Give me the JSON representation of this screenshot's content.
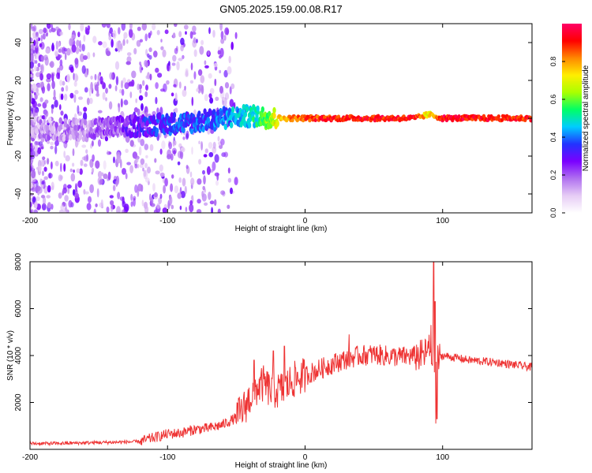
{
  "figure_title": "GN05.2025.159.00.08.R17",
  "chart_data": [
    {
      "type": "heatmap",
      "title": "GN05.2025.159.00.08.R17",
      "xlabel": "Height of straight line (km)",
      "ylabel": "Frequency (Hz)",
      "xlim": [
        -200,
        165
      ],
      "ylim": [
        -50,
        50
      ],
      "x_ticks": [
        -200,
        -100,
        0,
        100
      ],
      "y_ticks": [
        -40,
        -20,
        0,
        20,
        40
      ],
      "grid": false,
      "colorbar": {
        "label": "Normalized spectral amplitude",
        "range": [
          0,
          1
        ],
        "ticks": [
          0.0,
          0.2,
          0.4,
          0.6,
          0.8
        ],
        "colormap": [
          "#ffffff",
          "#e6ccf5",
          "#b070f0",
          "#7a00ff",
          "#2233ff",
          "#00ccff",
          "#00ff66",
          "#aaff00",
          "#ffee00",
          "#ff8800",
          "#ff0000",
          "#ff0066"
        ]
      },
      "ridge": [
        {
          "x": -195,
          "y": -5,
          "amp": 0.12
        },
        {
          "x": -180,
          "y": -6,
          "amp": 0.15
        },
        {
          "x": -160,
          "y": -6,
          "amp": 0.15
        },
        {
          "x": -140,
          "y": -5,
          "amp": 0.2
        },
        {
          "x": -120,
          "y": -4,
          "amp": 0.3
        },
        {
          "x": -100,
          "y": -3,
          "amp": 0.35
        },
        {
          "x": -80,
          "y": -2,
          "amp": 0.35
        },
        {
          "x": -60,
          "y": 0,
          "amp": 0.4
        },
        {
          "x": -45,
          "y": 1,
          "amp": 0.45
        },
        {
          "x": -35,
          "y": 1,
          "amp": 0.5
        },
        {
          "x": -25,
          "y": 0,
          "amp": 0.65
        },
        {
          "x": -15,
          "y": 0,
          "amp": 0.8
        },
        {
          "x": 0,
          "y": 0,
          "amp": 0.88
        },
        {
          "x": 40,
          "y": 0,
          "amp": 0.92
        },
        {
          "x": 80,
          "y": 0,
          "amp": 0.92
        },
        {
          "x": 90,
          "y": 2,
          "amp": 0.7
        },
        {
          "x": 100,
          "y": 0,
          "amp": 0.93
        },
        {
          "x": 165,
          "y": 0,
          "amp": 0.9
        }
      ]
    },
    {
      "type": "line",
      "xlabel": "Height of straight line (km)",
      "ylabel": "SNR (10 * v/v)",
      "xlim": [
        -200,
        165
      ],
      "ylim": [
        0,
        8000
      ],
      "x_ticks": [
        -200,
        -100,
        0,
        100
      ],
      "y_ticks": [
        2000,
        4000,
        6000,
        8000
      ],
      "grid": false,
      "line_color": "#ee3333",
      "series": [
        {
          "x": [
            -200,
            -180,
            -160,
            -140,
            -120,
            -110,
            -100,
            -90,
            -80,
            -70,
            -60,
            -50,
            -45,
            -40,
            -35,
            -30,
            -25,
            -20,
            -15,
            -10,
            -5,
            0,
            10,
            20,
            30,
            40,
            50,
            60,
            70,
            80,
            85,
            88,
            90,
            92,
            94,
            96,
            100,
            110,
            120,
            140,
            165
          ],
          "y": [
            250,
            250,
            280,
            300,
            330,
            500,
            650,
            700,
            850,
            900,
            1050,
            1350,
            1700,
            2200,
            2600,
            2800,
            2500,
            2500,
            2600,
            2900,
            3050,
            3150,
            3400,
            3650,
            3850,
            4000,
            4050,
            3980,
            3950,
            3980,
            4000,
            4100,
            4300,
            4000,
            3600,
            3800,
            4000,
            3900,
            3800,
            3700,
            3500
          ],
          "spikes": [
            {
              "x": 93.5,
              "y": 8000
            },
            {
              "x": 94.5,
              "y": 6300
            },
            {
              "x": 91.5,
              "y": 5300
            },
            {
              "x": 95.0,
              "y": 1100
            },
            {
              "x": 96.0,
              "y": 1300
            },
            {
              "x": -37,
              "y": 3800
            },
            {
              "x": -23,
              "y": 4200
            },
            {
              "x": -15,
              "y": 4400
            },
            {
              "x": 32,
              "y": 4900
            }
          ]
        }
      ]
    }
  ]
}
